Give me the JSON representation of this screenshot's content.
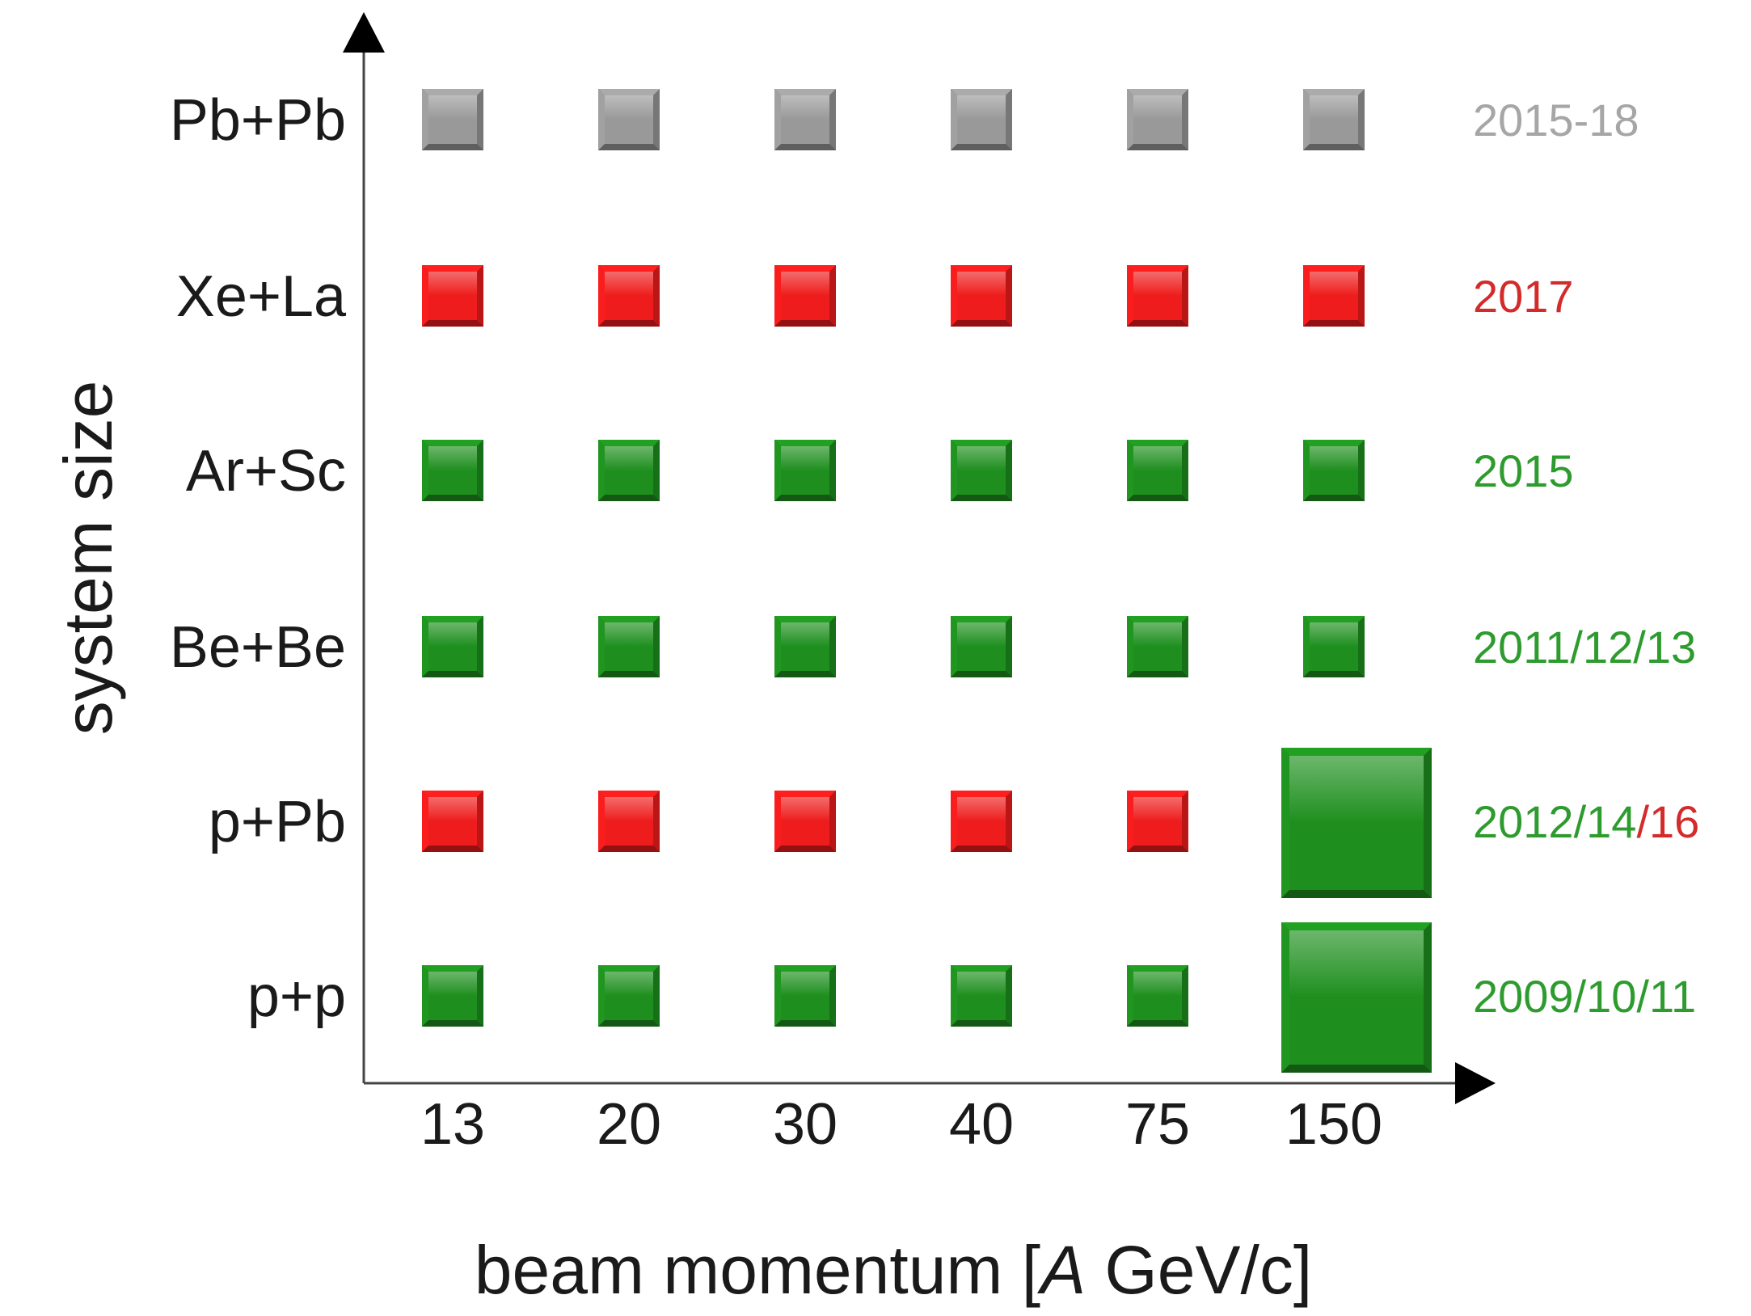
{
  "chart_data": {
    "type": "heatmap",
    "title": "",
    "xlabel_parts": [
      "beam momentum [",
      "A",
      " GeV/c]"
    ],
    "ylabel": "system size",
    "x_categories": [
      "13",
      "20",
      "30",
      "40",
      "75",
      "150"
    ],
    "y_categories": [
      "Pb+Pb",
      "Xe+La",
      "Ar+Sc",
      "Be+Be",
      "p+Pb",
      "p+p"
    ],
    "colors": {
      "gray": "#999999",
      "red": "#ee1c1c",
      "green": "#1e8f1e",
      "label_gray": "#a6a6a6",
      "label_red": "#d42a2a",
      "label_green": "#2e9b2e"
    },
    "cells": [
      {
        "system": "Pb+Pb",
        "status": [
          "gray",
          "gray",
          "gray",
          "gray",
          "gray",
          "gray"
        ]
      },
      {
        "system": "Xe+La",
        "status": [
          "red",
          "red",
          "red",
          "red",
          "red",
          "red"
        ]
      },
      {
        "system": "Ar+Sc",
        "status": [
          "green",
          "green",
          "green",
          "green",
          "green",
          "green"
        ]
      },
      {
        "system": "Be+Be",
        "status": [
          "green",
          "green",
          "green",
          "green",
          "green",
          "green"
        ]
      },
      {
        "system": "p+Pb",
        "status": [
          "red",
          "red",
          "red",
          "red",
          "red",
          "green"
        ],
        "large": [
          false,
          false,
          false,
          false,
          false,
          true
        ]
      },
      {
        "system": "p+p",
        "status": [
          "green",
          "green",
          "green",
          "green",
          "green",
          "green"
        ],
        "large": [
          false,
          false,
          false,
          false,
          false,
          true
        ]
      }
    ],
    "year_labels": [
      {
        "system": "Pb+Pb",
        "parts": [
          {
            "text": "2015-18",
            "color": "gray"
          }
        ]
      },
      {
        "system": "Xe+La",
        "parts": [
          {
            "text": "2017",
            "color": "red"
          }
        ]
      },
      {
        "system": "Ar+Sc",
        "parts": [
          {
            "text": "2015",
            "color": "green"
          }
        ]
      },
      {
        "system": "Be+Be",
        "parts": [
          {
            "text": "2011/12/13",
            "color": "green"
          }
        ]
      },
      {
        "system": "p+Pb",
        "parts": [
          {
            "text": "2012/14",
            "color": "green"
          },
          {
            "text": "/16",
            "color": "red"
          }
        ]
      },
      {
        "system": "p+p",
        "parts": [
          {
            "text": "2009/10/11",
            "color": "green"
          }
        ]
      }
    ]
  }
}
